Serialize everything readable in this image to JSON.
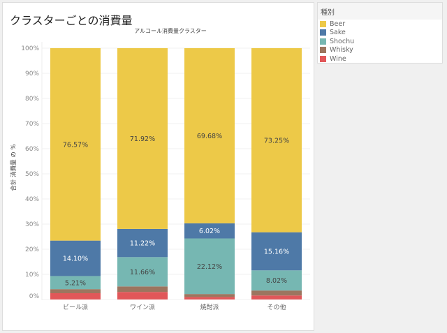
{
  "title": "クラスターごとの消費量",
  "legend": {
    "title": "種別",
    "items": [
      {
        "label": "Beer",
        "color": "#EDC948"
      },
      {
        "label": "Sake",
        "color": "#4E79A7"
      },
      {
        "label": "Shochu",
        "color": "#76B7B2"
      },
      {
        "label": "Whisky",
        "color": "#9C755F"
      },
      {
        "label": "Wine",
        "color": "#E15759"
      }
    ]
  },
  "chart_data": {
    "type": "bar",
    "stacked": true,
    "title": "アルコール消費量クラスター",
    "ylabel": "合計 消費量 の %",
    "ylim": [
      0,
      100
    ],
    "yticks": [
      "0%",
      "10%",
      "20%",
      "30%",
      "40%",
      "50%",
      "60%",
      "70%",
      "80%",
      "90%",
      "100%"
    ],
    "categories": [
      "ビール派",
      "ワイン派",
      "焼酎派",
      "その他"
    ],
    "series": [
      {
        "name": "Wine",
        "values": [
          2.5,
          3.0,
          1.0,
          1.6
        ],
        "labels": [
          "",
          "",
          "",
          ""
        ]
      },
      {
        "name": "Whisky",
        "values": [
          1.62,
          2.2,
          1.18,
          1.97
        ],
        "labels": [
          "",
          "",
          "",
          ""
        ]
      },
      {
        "name": "Shochu",
        "values": [
          5.21,
          11.66,
          22.12,
          8.02
        ],
        "labels": [
          "5.21%",
          "11.66%",
          "22.12%",
          "8.02%"
        ]
      },
      {
        "name": "Sake",
        "values": [
          14.1,
          11.22,
          6.02,
          15.16
        ],
        "labels": [
          "14.10%",
          "11.22%",
          "6.02%",
          "15.16%"
        ]
      },
      {
        "name": "Beer",
        "values": [
          76.57,
          71.92,
          69.68,
          73.25
        ],
        "labels": [
          "76.57%",
          "71.92%",
          "69.68%",
          "73.25%"
        ]
      }
    ],
    "grid": true,
    "legend": "right"
  }
}
